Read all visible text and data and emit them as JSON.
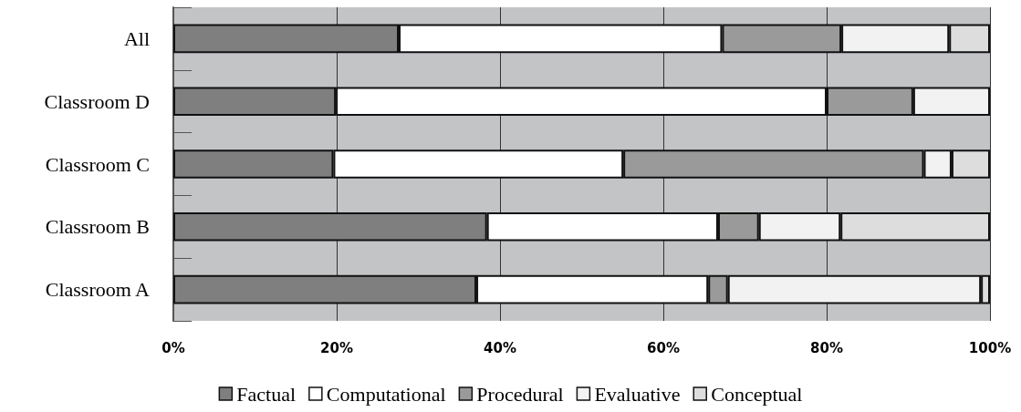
{
  "chart_data": {
    "type": "bar",
    "orientation": "horizontal",
    "stacked": true,
    "categories": [
      "All",
      "Classroom D",
      "Classroom C",
      "Classroom B",
      "Classroom A"
    ],
    "series": [
      {
        "name": "Factual",
        "color": "#7f7f7f",
        "values": [
          27.6,
          19.9,
          19.6,
          38.4,
          37.1
        ]
      },
      {
        "name": "Computational",
        "color": "#ffffff",
        "values": [
          39.6,
          60.1,
          35.5,
          28.3,
          28.4
        ]
      },
      {
        "name": "Procedural",
        "color": "#9a9a9a",
        "values": [
          14.6,
          10.6,
          36.8,
          5.0,
          2.4
        ]
      },
      {
        "name": "Evaluative",
        "color": "#f2f2f2",
        "values": [
          13.2,
          9.4,
          3.4,
          10.0,
          31.0
        ]
      },
      {
        "name": "Conceptual",
        "color": "#dddddd",
        "values": [
          5.0,
          0,
          4.7,
          18.3,
          1.1
        ]
      }
    ],
    "xlim": [
      0,
      100
    ],
    "xticks": [
      {
        "value": 0,
        "label": "0%"
      },
      {
        "value": 20,
        "label": "20%"
      },
      {
        "value": 40,
        "label": "40%"
      },
      {
        "value": 60,
        "label": "60%"
      },
      {
        "value": 80,
        "label": "80%"
      },
      {
        "value": 100,
        "label": "100%"
      }
    ],
    "grid": "x",
    "legend": "bottom"
  }
}
